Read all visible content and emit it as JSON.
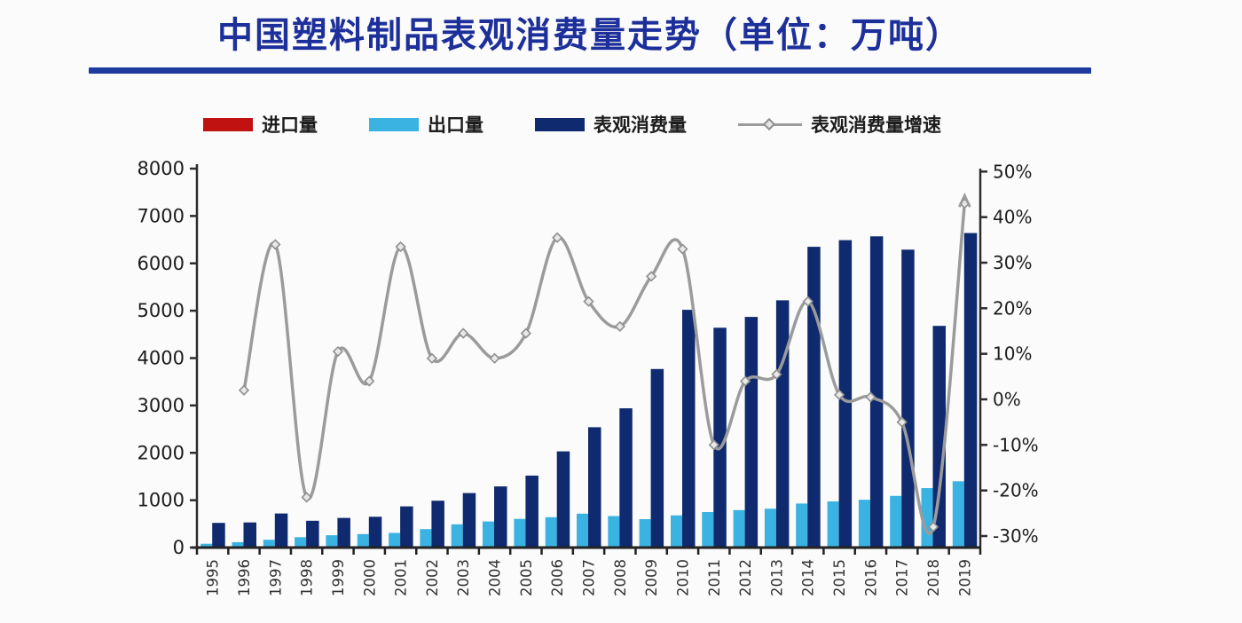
{
  "title": {
    "text": "中国塑料制品表观消费量走势（单位：万吨）",
    "color": "#1d2f9a"
  },
  "legend": {
    "items": [
      {
        "label": "进口量",
        "marker": "bar",
        "color": "#c11212"
      },
      {
        "label": "出口量",
        "marker": "bar",
        "color": "#3ab2e2"
      },
      {
        "label": "表观消费量",
        "marker": "bar",
        "color": "#0f2a6e"
      },
      {
        "label": "表观消费量增速",
        "marker": "line",
        "color": "#9b9b9b"
      }
    ]
  },
  "chart_data": {
    "type": "bar",
    "subtype": "combo-bar-line-dual-axis",
    "title": "中国塑料制品表观消费量走势（单位：万吨）",
    "unit_left": "万吨",
    "unit_right": "%",
    "grid": false,
    "legend_position": "top",
    "x_labels_rotated": true,
    "categories": [
      "1995",
      "1996",
      "1997",
      "1998",
      "1999",
      "2000",
      "2001",
      "2002",
      "2003",
      "2004",
      "2005",
      "2006",
      "2007",
      "2008",
      "2009",
      "2010",
      "2011",
      "2012",
      "2013",
      "2014",
      "2015",
      "2016",
      "2017",
      "2018",
      "2019"
    ],
    "series": [
      {
        "name": "进口量",
        "type": "bar",
        "axis": "left",
        "color": "#c11212",
        "values": [],
        "note": "bars too small to be visible at chart scale"
      },
      {
        "name": "出口量",
        "type": "bar",
        "axis": "left",
        "color": "#3ab2e2",
        "values": [
          80,
          115,
          165,
          220,
          260,
          285,
          310,
          390,
          490,
          550,
          605,
          640,
          715,
          665,
          600,
          680,
          750,
          790,
          820,
          930,
          975,
          1010,
          1090,
          1255,
          1400
        ]
      },
      {
        "name": "表观消费量",
        "type": "bar",
        "axis": "left",
        "color": "#0f2a6e",
        "values": [
          520,
          530,
          720,
          565,
          625,
          650,
          870,
          990,
          1150,
          1290,
          1520,
          2030,
          2540,
          2940,
          3770,
          5020,
          4640,
          4870,
          5220,
          6350,
          6490,
          6570,
          6290,
          4680,
          6640
        ]
      },
      {
        "name": "表观消费量增速",
        "type": "line",
        "axis": "right",
        "color": "#9b9b9b",
        "end_arrow": true,
        "values": [
          null,
          2,
          34,
          -21.5,
          10.5,
          4,
          33.5,
          9,
          14.5,
          9,
          14.5,
          35.5,
          21.5,
          16,
          27,
          33,
          -10,
          4,
          5.5,
          21.5,
          1,
          0.5,
          -5,
          -28,
          43
        ]
      }
    ],
    "left_axis": {
      "min": 0,
      "max": 8000,
      "step": 1000,
      "tick_labels": [
        "8000",
        "7000",
        "6000",
        "5000",
        "4000",
        "3000",
        "2000",
        "1000",
        "0"
      ]
    },
    "right_axis": {
      "min": -30,
      "max": 50,
      "step": 10,
      "tick_labels": [
        "50%",
        "40%",
        "30%",
        "20%",
        "10%",
        "0%",
        "-10%",
        "-20%",
        "-30%"
      ]
    }
  }
}
